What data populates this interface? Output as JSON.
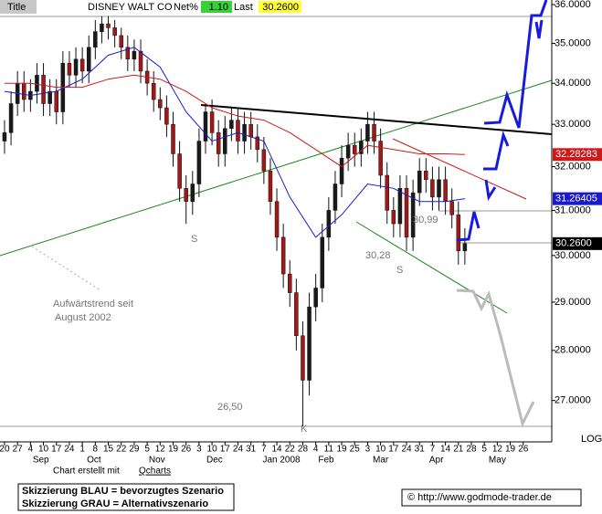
{
  "header": {
    "tab": "Title",
    "name": "DISNEY WALT CO",
    "net_label": "Net%",
    "net": "1.10",
    "last_label": "Last",
    "last": "30.2600"
  },
  "chart_data": {
    "type": "candlestick",
    "log_scale": true,
    "log_label": "LOG",
    "up_color": "#1a1a1a",
    "down_color": "#a01818",
    "open": [
      32.6,
      32.8,
      33.5,
      34.0,
      33.6,
      33.8,
      34.2,
      33.5,
      33.8,
      33.3,
      34.5,
      34.2,
      34.6,
      34.3,
      34.9,
      35.3,
      35.5,
      35.4,
      35.2,
      34.9,
      34.6,
      34.8,
      34.3,
      34.0,
      33.6,
      33.4,
      33.0,
      32.3,
      31.5,
      31.2,
      31.6,
      32.6,
      33.3,
      32.8,
      32.3,
      32.9,
      33.1,
      32.6,
      33.0,
      32.7,
      32.4,
      31.9,
      31.2,
      30.4,
      29.6,
      29.2,
      28.3,
      27.4,
      28.9,
      29.3,
      30.4,
      31.0,
      31.6,
      32.2,
      32.5,
      32.3,
      32.6,
      33.0,
      32.6,
      31.8,
      31.0,
      30.7,
      31.5,
      30.4,
      31.4,
      31.9,
      31.7,
      31.3,
      31.7,
      31.2,
      30.9,
      30.1
    ],
    "high": [
      33.1,
      33.8,
      34.3,
      34.3,
      34.1,
      34.5,
      34.5,
      34.1,
      34.1,
      34.8,
      34.8,
      34.9,
      34.9,
      35.2,
      35.6,
      35.7,
      35.7,
      35.6,
      35.4,
      35.2,
      35.1,
      35.1,
      34.6,
      34.3,
      33.9,
      33.7,
      33.3,
      32.6,
      31.8,
      31.9,
      32.9,
      33.5,
      33.6,
      33.1,
      33.2,
      33.4,
      33.4,
      33.3,
      33.3,
      33.0,
      32.7,
      32.2,
      31.5,
      30.7,
      29.9,
      29.5,
      28.6,
      29.2,
      29.6,
      30.7,
      31.3,
      31.9,
      32.5,
      32.8,
      32.8,
      32.9,
      33.3,
      33.3,
      32.9,
      32.1,
      31.3,
      31.8,
      31.8,
      31.7,
      32.2,
      32.2,
      32.0,
      32.0,
      32.0,
      31.5,
      31.2,
      30.6
    ],
    "low": [
      32.3,
      32.5,
      33.2,
      33.3,
      33.3,
      33.5,
      33.2,
      33.2,
      33.0,
      33.0,
      33.9,
      33.9,
      34.0,
      34.0,
      34.6,
      35.0,
      35.1,
      34.9,
      34.6,
      34.3,
      34.3,
      34.0,
      33.7,
      33.3,
      33.1,
      32.7,
      32.0,
      31.2,
      30.7,
      30.9,
      31.3,
      32.3,
      32.5,
      32.0,
      32.0,
      32.6,
      32.3,
      32.3,
      32.4,
      32.1,
      31.6,
      30.9,
      30.1,
      29.3,
      28.9,
      28.0,
      26.5,
      27.1,
      28.6,
      29.0,
      30.1,
      30.7,
      31.3,
      31.9,
      32.0,
      32.0,
      32.3,
      32.3,
      31.5,
      30.7,
      30.4,
      30.4,
      30.1,
      30.1,
      31.1,
      31.4,
      31.0,
      31.0,
      30.9,
      30.6,
      29.8,
      29.8
    ],
    "close": [
      32.8,
      33.5,
      34.0,
      33.6,
      33.8,
      34.2,
      33.5,
      33.8,
      33.3,
      34.5,
      34.2,
      34.6,
      34.3,
      34.9,
      35.3,
      35.5,
      35.4,
      35.2,
      34.9,
      34.6,
      34.8,
      34.3,
      34.0,
      33.6,
      33.4,
      33.0,
      32.3,
      31.5,
      31.2,
      31.6,
      32.6,
      33.3,
      32.8,
      32.3,
      32.9,
      33.1,
      32.6,
      33.0,
      32.7,
      32.4,
      31.9,
      31.2,
      30.4,
      29.6,
      29.2,
      28.3,
      27.4,
      28.9,
      29.3,
      30.4,
      31.0,
      31.6,
      32.2,
      32.5,
      32.3,
      32.6,
      33.0,
      32.6,
      31.8,
      31.0,
      30.7,
      31.5,
      30.4,
      31.4,
      31.9,
      31.7,
      31.3,
      31.7,
      31.2,
      30.9,
      30.1,
      30.26
    ],
    "series": [
      {
        "color": "#1a1acc",
        "x": [
          0,
          4,
          8,
          12,
          16,
          20,
          24,
          28,
          32,
          36,
          40,
          44,
          48,
          52,
          56,
          60,
          64,
          68,
          71
        ],
        "values": [
          33.8,
          33.7,
          33.8,
          34.1,
          34.7,
          34.9,
          34.4,
          33.3,
          32.6,
          32.8,
          32.6,
          31.3,
          30.4,
          30.9,
          31.6,
          31.5,
          31.2,
          31.2,
          31.26405
        ]
      },
      {
        "color": "#cc1a1a",
        "x": [
          0,
          4,
          8,
          12,
          16,
          20,
          24,
          28,
          32,
          36,
          40,
          44,
          48,
          52,
          56,
          60,
          64,
          68,
          71
        ],
        "values": [
          34.0,
          34.0,
          33.9,
          33.9,
          34.1,
          34.2,
          34.1,
          33.8,
          33.4,
          33.2,
          33.1,
          32.8,
          32.4,
          32.0,
          32.5,
          32.4,
          32.3,
          32.3,
          32.28283
        ]
      }
    ],
    "last_values": [
      {
        "value": 32.28283,
        "color": "#cc1a1a"
      },
      {
        "value": 31.26405,
        "color": "#1a1acc"
      },
      {
        "value": 30.26,
        "label": "30.2600",
        "color": "#000000"
      }
    ],
    "xlim": [
      -0.7,
      84.4
    ],
    "ylim": [
      26.2,
      36.12
    ],
    "yticks": [
      {
        "value": 36,
        "label": "36.0000"
      },
      {
        "value": 35,
        "label": "35.0000"
      },
      {
        "value": 34,
        "label": "34.0000"
      },
      {
        "value": 33,
        "label": "33.0000"
      },
      {
        "value": 32,
        "label": "32.0000"
      },
      {
        "value": 31,
        "label": "31.0000"
      },
      {
        "value": 30,
        "label": "30.0000"
      },
      {
        "value": 29,
        "label": "29.0000"
      },
      {
        "value": 28,
        "label": "28.0000"
      },
      {
        "value": 27,
        "label": "27.0000"
      }
    ],
    "xticks": [
      {
        "value": 0,
        "label": "20"
      },
      {
        "value": 2,
        "label": "27"
      },
      {
        "value": 4,
        "label": "4"
      },
      {
        "value": 6,
        "label": "10"
      },
      {
        "value": 8,
        "label": "17"
      },
      {
        "value": 10,
        "label": "24"
      },
      {
        "value": 12,
        "label": "1"
      },
      {
        "value": 14,
        "label": "8"
      },
      {
        "value": 16,
        "label": "15"
      },
      {
        "value": 18,
        "label": "22"
      },
      {
        "value": 20,
        "label": "29"
      },
      {
        "value": 22,
        "label": "5"
      },
      {
        "value": 24,
        "label": "12"
      },
      {
        "value": 26,
        "label": "19"
      },
      {
        "value": 28,
        "label": "26"
      },
      {
        "value": 30,
        "label": "3"
      },
      {
        "value": 32,
        "label": "10"
      },
      {
        "value": 34,
        "label": "17"
      },
      {
        "value": 36,
        "label": "24"
      },
      {
        "value": 38,
        "label": "31"
      },
      {
        "value": 40,
        "label": "7"
      },
      {
        "value": 42,
        "label": "14"
      },
      {
        "value": 44,
        "label": "22"
      },
      {
        "value": 46,
        "label": "28"
      },
      {
        "value": 48,
        "label": "4"
      },
      {
        "value": 50,
        "label": "11"
      },
      {
        "value": 52,
        "label": "19"
      },
      {
        "value": 54,
        "label": "25"
      },
      {
        "value": 56,
        "label": "3"
      },
      {
        "value": 58,
        "label": "10"
      },
      {
        "value": 60,
        "label": "17"
      },
      {
        "value": 62,
        "label": "24"
      },
      {
        "value": 64,
        "label": "31"
      },
      {
        "value": 66,
        "label": "7"
      },
      {
        "value": 68,
        "label": "14"
      },
      {
        "value": 70,
        "label": "21"
      },
      {
        "value": 72,
        "label": "28"
      },
      {
        "value": 74,
        "label": "5"
      },
      {
        "value": 76,
        "label": "12"
      },
      {
        "value": 78,
        "label": "19"
      },
      {
        "value": 80,
        "label": "26"
      }
    ],
    "months": [
      {
        "value": 5.6,
        "label": "Sep"
      },
      {
        "value": 13.8,
        "label": "Oct"
      },
      {
        "value": 23.5,
        "label": "Nov"
      },
      {
        "value": 32.4,
        "label": "Dec"
      },
      {
        "value": 42.7,
        "label": "Jan 2008"
      },
      {
        "value": 49.6,
        "label": "Feb"
      },
      {
        "value": 58,
        "label": "Mar"
      },
      {
        "value": 66.6,
        "label": "Apr"
      },
      {
        "value": 76,
        "label": "May"
      }
    ],
    "annotations": [
      "S",
      "S",
      "K",
      "26,50",
      "30,28",
      "30,99",
      "Aufwärtstrend seit",
      "August 2002"
    ]
  },
  "footer": {
    "credit_prefix": "Chart erstellt mit",
    "credit_link": "Qcharts",
    "legend": [
      "Skizzierung BLAU = bevorzugtes Szenario",
      "Skizzierung GRAU = Alternativszenario"
    ],
    "copyright": "© http://www.godmode-trader.de"
  }
}
